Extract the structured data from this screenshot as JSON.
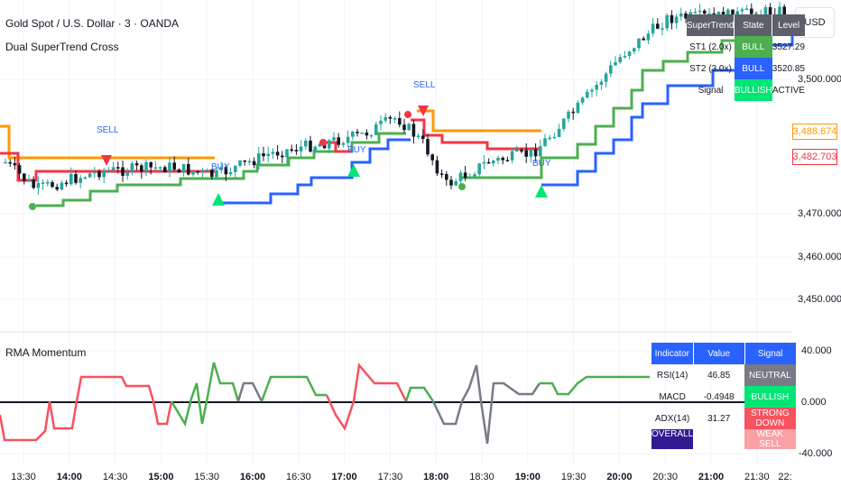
{
  "header": {
    "symbol_title": "Gold Spot / U.S. Dollar · 3 · OANDA",
    "indicator_name": "Dual SuperTrend Cross",
    "currency_button": "USD"
  },
  "price_axis": {
    "labels": [
      "3,500.000",
      "3,470.000",
      "3,460.000",
      "3,450.000"
    ],
    "tags": [
      {
        "text": "3,488.674",
        "color": "#ff9800"
      },
      {
        "text": "3,482.703",
        "color": "#f23645"
      }
    ]
  },
  "signals": [
    {
      "text": "SELL"
    },
    {
      "text": "BUY"
    },
    {
      "text": "BUY"
    },
    {
      "text": "SELL"
    },
    {
      "text": "BUY"
    }
  ],
  "supertrend_table": {
    "headers": [
      "SuperTrend",
      "State",
      "Level"
    ],
    "rows": [
      {
        "name": "ST1 (2.0x)",
        "state": "BULL",
        "level": "3527.29",
        "state_color": "#4caf50"
      },
      {
        "name": "ST2 (3.0x)",
        "state": "BULL",
        "level": "3520.85",
        "state_color": "#2962ff"
      },
      {
        "name": "Signal",
        "state": "BULLISH",
        "level": "ACTIVE",
        "state_color": "#00e676"
      }
    ]
  },
  "momentum_pane": {
    "title": "RMA Momentum",
    "axis_labels": [
      "40.000",
      "0.000",
      "-40.000"
    ],
    "table": {
      "headers": [
        "Indicator",
        "Value",
        "Signal"
      ],
      "rows": [
        {
          "name": "RSI(14)",
          "value": "46.85",
          "signal": "NEUTRAL",
          "signal_color": "#787b86"
        },
        {
          "name": "MACD",
          "value": "-0.4948",
          "signal": "BULLISH",
          "signal_color": "#00e676"
        },
        {
          "name": "ADX(14)",
          "value": "31.27",
          "signal": "STRONG DOWN",
          "signal_color": "#f7525f"
        },
        {
          "name": "OVERALL",
          "value": "",
          "signal": "WEAK SELL",
          "signal_color": "#faa1a4"
        }
      ]
    }
  },
  "time_axis": [
    "13:30",
    "14:00",
    "14:30",
    "15:00",
    "15:30",
    "16:00",
    "16:30",
    "17:00",
    "17:30",
    "18:00",
    "18:30",
    "19:00",
    "19:30",
    "20:00",
    "20:30",
    "21:00",
    "21:30",
    "22:"
  ],
  "colors": {
    "bull_candle": "#26a69a",
    "bear_candle": "#131722",
    "st_up_fast": "#4caf50",
    "st_up_slow": "#2962ff",
    "st_down_fast": "#f23645",
    "st_down_slow": "#ff9800",
    "mom_up": "#4caf50",
    "mom_down": "#f7525f",
    "mom_neutral": "#787b86"
  },
  "chart_data": {
    "type": "line",
    "x": [
      "13:30",
      "14:00",
      "14:30",
      "15:00",
      "15:30",
      "16:00",
      "16:30",
      "17:00",
      "17:30",
      "18:00",
      "18:30",
      "19:00",
      "19:30",
      "20:00",
      "20:30",
      "21:00",
      "21:30"
    ],
    "series": [
      {
        "name": "ST1 (2.0x)"
      },
      {
        "name": "ST2 (3.0x)"
      }
    ],
    "ylim": [
      3445,
      3525
    ]
  }
}
